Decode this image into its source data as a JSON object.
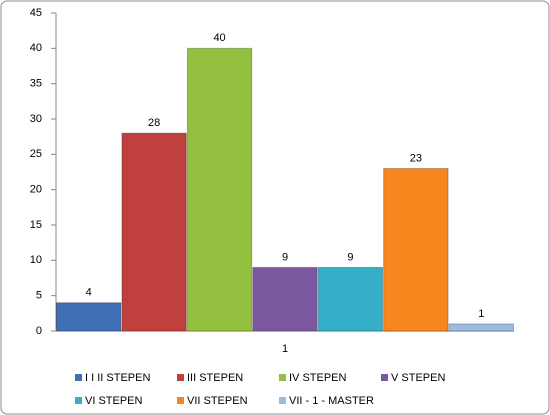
{
  "chart_data": {
    "type": "bar",
    "categories": [
      "1"
    ],
    "series": [
      {
        "name": "I I II STEPEN",
        "color": "#3f6fb4",
        "values": [
          4
        ]
      },
      {
        "name": "III STEPEN",
        "color": "#c0403d",
        "values": [
          28
        ]
      },
      {
        "name": "IV STEPEN",
        "color": "#94c03f",
        "values": [
          40
        ]
      },
      {
        "name": "V STEPEN",
        "color": "#7b579f",
        "values": [
          9
        ]
      },
      {
        "name": "VI STEPEN",
        "color": "#35aec8",
        "values": [
          9
        ]
      },
      {
        "name": "VII STEPEN",
        "color": "#f7861f",
        "values": [
          23
        ]
      },
      {
        "name": "VII - 1 - MASTER",
        "color": "#9bbbe0",
        "values": [
          1
        ]
      }
    ],
    "ylim": [
      0,
      45
    ],
    "yticks": [
      0,
      5,
      10,
      15,
      20,
      25,
      30,
      35,
      40,
      45
    ],
    "grid": false,
    "legend": "bottom"
  }
}
